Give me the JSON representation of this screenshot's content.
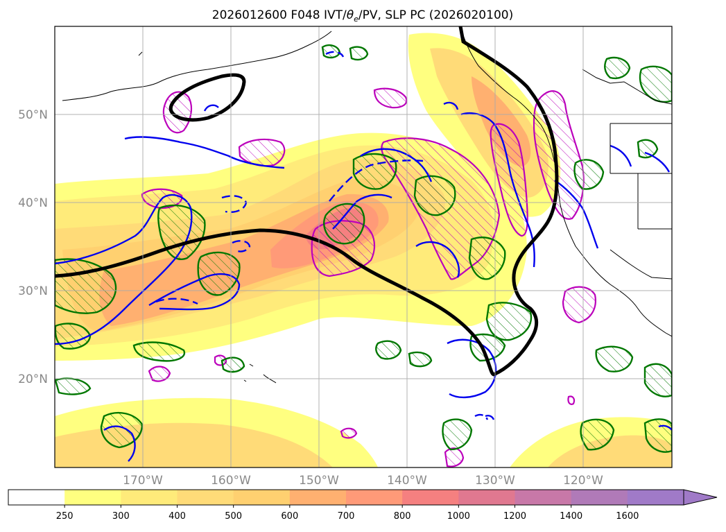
{
  "title_main": "2026012600 F048 IVT/",
  "title_theta": "θ",
  "title_sub": "e",
  "title_rest": "/PV, SLP PC (2026020100)",
  "lat_labels": [
    "50°N",
    "40°N",
    "30°N",
    "20°N"
  ],
  "lon_labels": [
    "170°W",
    "160°W",
    "150°W",
    "140°W",
    "130°W",
    "120°W"
  ],
  "colorbar": {
    "levels": [
      "250",
      "300",
      "400",
      "500",
      "600",
      "700",
      "800",
      "1000",
      "1200",
      "1400",
      "1600"
    ],
    "colors": [
      "#ffffff",
      "#ffff80",
      "#ffeb7a",
      "#ffdb78",
      "#ffd070",
      "#ffb070",
      "#ff9a78",
      "#f58080",
      "#e07890",
      "#c878a8",
      "#b07ab8",
      "#a07ac8"
    ]
  },
  "colors": {
    "slp": "#000000",
    "theta_e": "#0000ee",
    "pv": "#007700",
    "ivt_hatch": "#bb00bb",
    "coast": "#000000"
  }
}
